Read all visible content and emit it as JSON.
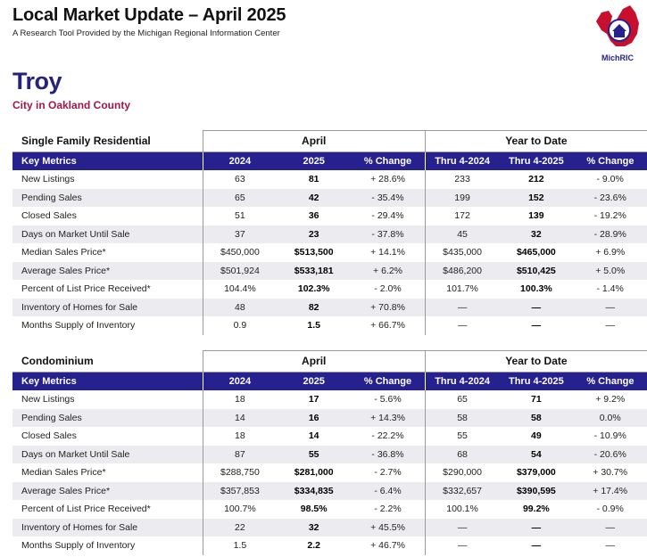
{
  "header": {
    "title": "Local Market Update – April 2025",
    "subtitle": "A Research Tool Provided by the Michigan Regional Information Center"
  },
  "logo": {
    "text": "MichRIC",
    "accent_color": "#c8102e",
    "brand_color": "#27218f"
  },
  "location": {
    "city": "Troy",
    "county": "City in Oakland County"
  },
  "colors": {
    "header_bar": "#27218f",
    "city": "#26237a",
    "county": "#a3174a",
    "zebra": "#ececf0"
  },
  "sections": [
    {
      "title": "Single Family Residential",
      "group_month": "April",
      "group_ytd": "Year to Date",
      "columns": [
        "Key Metrics",
        "2024",
        "2025",
        "% Change",
        "Thru 4-2024",
        "Thru 4-2025",
        "% Change"
      ],
      "rows": [
        {
          "metric": "New Listings",
          "v2024": "63",
          "v2025": "81",
          "chg": "+ 28.6%",
          "ytd2024": "233",
          "ytd2025": "212",
          "ytdchg": "- 9.0%"
        },
        {
          "metric": "Pending Sales",
          "v2024": "65",
          "v2025": "42",
          "chg": "- 35.4%",
          "ytd2024": "199",
          "ytd2025": "152",
          "ytdchg": "- 23.6%"
        },
        {
          "metric": "Closed Sales",
          "v2024": "51",
          "v2025": "36",
          "chg": "- 29.4%",
          "ytd2024": "172",
          "ytd2025": "139",
          "ytdchg": "- 19.2%"
        },
        {
          "metric": "Days on Market Until Sale",
          "v2024": "37",
          "v2025": "23",
          "chg": "- 37.8%",
          "ytd2024": "45",
          "ytd2025": "32",
          "ytdchg": "- 28.9%"
        },
        {
          "metric": "Median Sales Price*",
          "v2024": "$450,000",
          "v2025": "$513,500",
          "chg": "+ 14.1%",
          "ytd2024": "$435,000",
          "ytd2025": "$465,000",
          "ytdchg": "+ 6.9%"
        },
        {
          "metric": "Average Sales Price*",
          "v2024": "$501,924",
          "v2025": "$533,181",
          "chg": "+ 6.2%",
          "ytd2024": "$486,200",
          "ytd2025": "$510,425",
          "ytdchg": "+ 5.0%"
        },
        {
          "metric": "Percent of List Price Received*",
          "v2024": "104.4%",
          "v2025": "102.3%",
          "chg": "- 2.0%",
          "ytd2024": "101.7%",
          "ytd2025": "100.3%",
          "ytdchg": "- 1.4%"
        },
        {
          "metric": "Inventory of Homes for Sale",
          "v2024": "48",
          "v2025": "82",
          "chg": "+ 70.8%",
          "ytd2024": "—",
          "ytd2025": "—",
          "ytdchg": "—"
        },
        {
          "metric": "Months Supply of Inventory",
          "v2024": "0.9",
          "v2025": "1.5",
          "chg": "+ 66.7%",
          "ytd2024": "—",
          "ytd2025": "—",
          "ytdchg": "—"
        }
      ]
    },
    {
      "title": "Condominium",
      "group_month": "April",
      "group_ytd": "Year to Date",
      "columns": [
        "Key Metrics",
        "2024",
        "2025",
        "% Change",
        "Thru 4-2024",
        "Thru 4-2025",
        "% Change"
      ],
      "rows": [
        {
          "metric": "New Listings",
          "v2024": "18",
          "v2025": "17",
          "chg": "- 5.6%",
          "ytd2024": "65",
          "ytd2025": "71",
          "ytdchg": "+ 9.2%"
        },
        {
          "metric": "Pending Sales",
          "v2024": "14",
          "v2025": "16",
          "chg": "+ 14.3%",
          "ytd2024": "58",
          "ytd2025": "58",
          "ytdchg": "0.0%"
        },
        {
          "metric": "Closed Sales",
          "v2024": "18",
          "v2025": "14",
          "chg": "- 22.2%",
          "ytd2024": "55",
          "ytd2025": "49",
          "ytdchg": "- 10.9%"
        },
        {
          "metric": "Days on Market Until Sale",
          "v2024": "87",
          "v2025": "55",
          "chg": "- 36.8%",
          "ytd2024": "68",
          "ytd2025": "54",
          "ytdchg": "- 20.6%"
        },
        {
          "metric": "Median Sales Price*",
          "v2024": "$288,750",
          "v2025": "$281,000",
          "chg": "- 2.7%",
          "ytd2024": "$290,000",
          "ytd2025": "$379,000",
          "ytdchg": "+ 30.7%"
        },
        {
          "metric": "Average Sales Price*",
          "v2024": "$357,853",
          "v2025": "$334,835",
          "chg": "- 6.4%",
          "ytd2024": "$332,657",
          "ytd2025": "$390,595",
          "ytdchg": "+ 17.4%"
        },
        {
          "metric": "Percent of List Price Received*",
          "v2024": "100.7%",
          "v2025": "98.5%",
          "chg": "- 2.2%",
          "ytd2024": "100.1%",
          "ytd2025": "99.2%",
          "ytdchg": "- 0.9%"
        },
        {
          "metric": "Inventory of Homes for Sale",
          "v2024": "22",
          "v2025": "32",
          "chg": "+ 45.5%",
          "ytd2024": "—",
          "ytd2025": "—",
          "ytdchg": "—"
        },
        {
          "metric": "Months Supply of Inventory",
          "v2024": "1.5",
          "v2025": "2.2",
          "chg": "+ 46.7%",
          "ytd2024": "—",
          "ytd2025": "—",
          "ytdchg": "—"
        }
      ]
    }
  ]
}
